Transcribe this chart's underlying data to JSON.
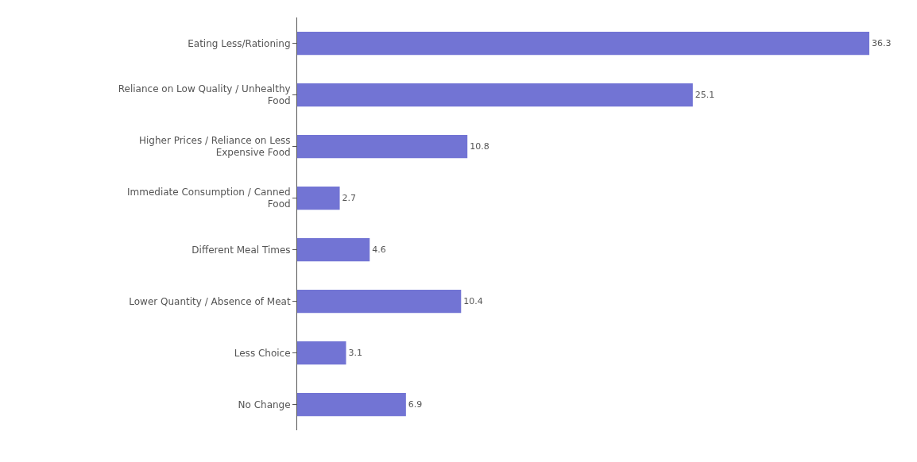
{
  "chart_data": {
    "type": "bar",
    "orientation": "horizontal",
    "categories": [
      "Eating Less/Rationing",
      "Reliance on Low Quality / Unhealthy\nFood",
      "Higher Prices / Reliance on Less\nExpensive Food",
      "Immediate Consumption / Canned\nFood",
      "Different Meal Times",
      "Lower Quantity / Absence of Meat",
      "Less Choice",
      "No Change"
    ],
    "values": [
      36.3,
      25.1,
      10.8,
      2.7,
      4.6,
      10.4,
      3.1,
      6.9
    ],
    "color": "#7274d4",
    "data_labels": true,
    "tick_labels": "y",
    "legend": false
  }
}
